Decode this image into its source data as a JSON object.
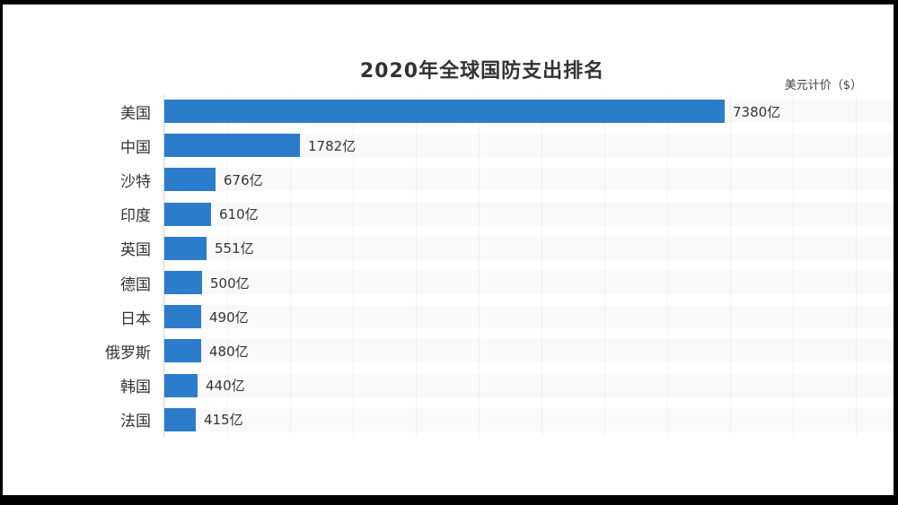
{
  "page": {
    "frame_color": "#000000",
    "canvas_color": "#ffffff"
  },
  "chart": {
    "title": "2020年全球国防支出排名",
    "unit_note": "美元计价（$）"
  },
  "chart_data": {
    "type": "bar",
    "orientation": "horizontal",
    "title": "2020年全球国防支出排名",
    "unit": "亿美元 ($)",
    "categories": [
      "美国",
      "中国",
      "沙特",
      "印度",
      "英国",
      "德国",
      "日本",
      "俄罗斯",
      "韩国",
      "法国"
    ],
    "values": [
      7380,
      1782,
      676,
      610,
      551,
      500,
      490,
      480,
      440,
      415
    ],
    "value_labels": [
      "7380亿",
      "1782亿",
      "676亿",
      "610亿",
      "551亿",
      "500亿",
      "490亿",
      "480亿",
      "440亿",
      "415亿"
    ],
    "xlim": [
      0,
      7380
    ],
    "grid": "faint-vertical",
    "legend": "none",
    "bar_color": "#2b7ccb",
    "axis_line_color": "#d9d9d9",
    "label_color": "#333333"
  }
}
